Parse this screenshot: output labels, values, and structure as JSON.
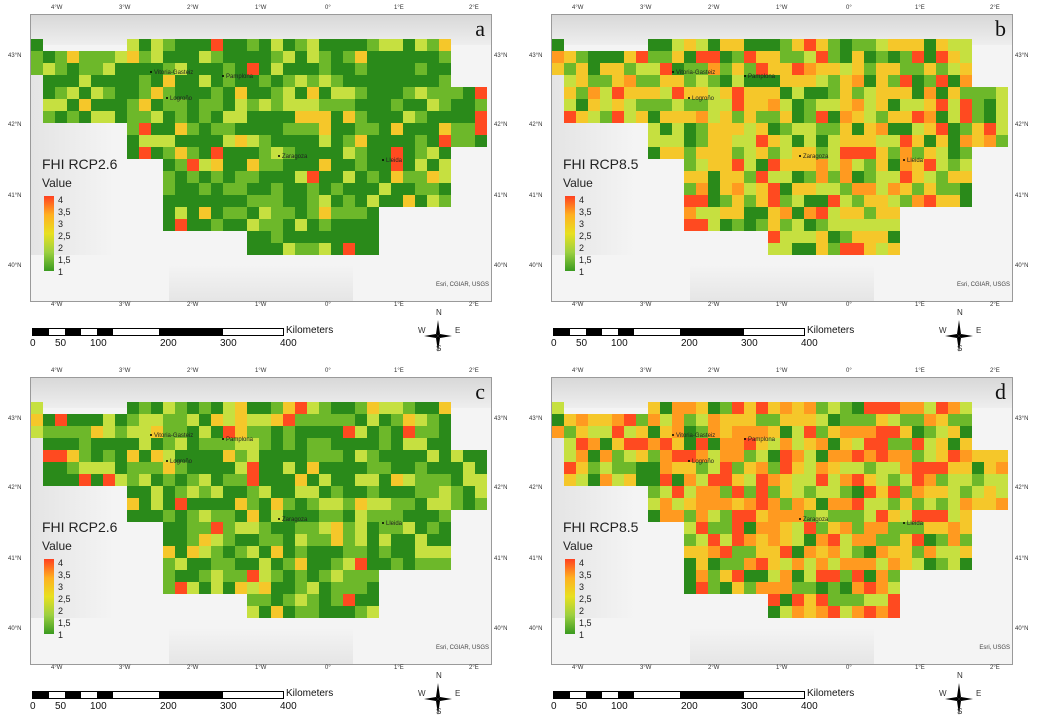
{
  "panels": [
    {
      "letter": "a",
      "title": "FHI RCP2.6",
      "scheme": "a",
      "credit": "Esri, CGIAR, USGS"
    },
    {
      "letter": "b",
      "title": "FHI RCP8.5",
      "scheme": "b",
      "credit": "Esri, CGIAR, USGS"
    },
    {
      "letter": "c",
      "title": "FHI RCP2.6",
      "scheme": "c",
      "credit": "Esri, CGIAR, USGS"
    },
    {
      "letter": "d",
      "title": "FHI RCP8.5",
      "scheme": "d",
      "credit": "Esri, USGS"
    }
  ],
  "legend": {
    "heading": "Value",
    "labels": [
      "4",
      "3,5",
      "3",
      "2,5",
      "2",
      "1,5",
      "1"
    ]
  },
  "lon_ticks": [
    "4°W",
    "3°W",
    "2°W",
    "1°W",
    "0°",
    "1°E",
    "2°E"
  ],
  "lat_ticks": [
    "43°N",
    "42°N",
    "41°N",
    "40°N"
  ],
  "cities": [
    "Vitoria-Gasteiz",
    "Pamplona",
    "Logroño",
    "Zaragoza",
    "Lleida"
  ],
  "scale": {
    "unit": "Kilometers",
    "ticks": [
      "0",
      "50",
      "100",
      "200",
      "300",
      "400"
    ]
  },
  "compass": {
    "n": "N",
    "s": "S",
    "e": "E",
    "w": "W"
  },
  "colors": {
    "c1": "#2a8a1a",
    "c2": "#6db82a",
    "c3": "#c6e040",
    "c4": "#f5c72a",
    "c5": "#ff9a20",
    "c6": "#ff4a20"
  }
}
